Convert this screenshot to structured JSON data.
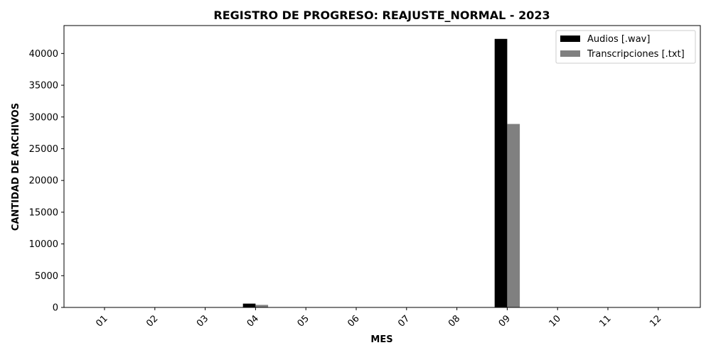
{
  "chart_data": {
    "type": "bar",
    "title": "REGISTRO DE PROGRESO: REAJUSTE_NORMAL - 2023",
    "xlabel": "MES",
    "ylabel": "CANTIDAD DE ARCHIVOS",
    "categories": [
      "01",
      "02",
      "03",
      "04",
      "05",
      "06",
      "07",
      "08",
      "09",
      "10",
      "11",
      "12"
    ],
    "series": [
      {
        "name": "Audios [.wav]",
        "color": "#000000",
        "values": [
          0,
          0,
          0,
          600,
          0,
          0,
          0,
          0,
          42300,
          0,
          0,
          0
        ]
      },
      {
        "name": "Transcripciones [.txt]",
        "color": "#808080",
        "values": [
          0,
          0,
          0,
          400,
          0,
          0,
          0,
          0,
          28900,
          0,
          0,
          0
        ]
      }
    ],
    "ylim": [
      0,
      44400
    ],
    "yticks": [
      0,
      5000,
      10000,
      15000,
      20000,
      25000,
      30000,
      35000,
      40000
    ],
    "legend_position": "top-right",
    "grid": false
  }
}
